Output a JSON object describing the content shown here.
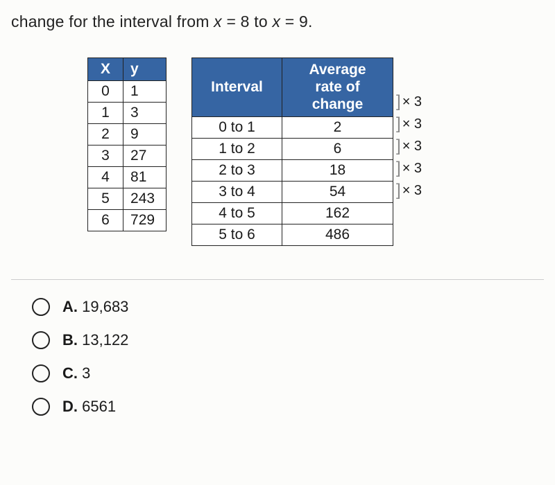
{
  "question": {
    "prefix": "change for the interval from ",
    "var1": "x",
    "eq1": " = 8 to ",
    "var2": "x",
    "eq2": " = 9."
  },
  "xy_table": {
    "headers": {
      "x": "X",
      "y": "y"
    },
    "rows": [
      {
        "x": "0",
        "y": "1"
      },
      {
        "x": "1",
        "y": "3"
      },
      {
        "x": "2",
        "y": "9"
      },
      {
        "x": "3",
        "y": "27"
      },
      {
        "x": "4",
        "y": "81"
      },
      {
        "x": "5",
        "y": "243"
      },
      {
        "x": "6",
        "y": "729"
      }
    ]
  },
  "rate_table": {
    "headers": {
      "interval": "Interval",
      "rate": "Average rate of change"
    },
    "rows": [
      {
        "interval": "0 to 1",
        "rate": "2"
      },
      {
        "interval": "1 to 2",
        "rate": "6"
      },
      {
        "interval": "2 to 3",
        "rate": "18"
      },
      {
        "interval": "3 to 4",
        "rate": "54"
      },
      {
        "interval": "4 to 5",
        "rate": "162"
      },
      {
        "interval": "5 to 6",
        "rate": "486"
      }
    ]
  },
  "multipliers": [
    {
      "label": "× 3"
    },
    {
      "label": "× 3"
    },
    {
      "label": "× 3"
    },
    {
      "label": "× 3"
    },
    {
      "label": "× 3"
    }
  ],
  "options": [
    {
      "letter": "A.",
      "text": "19,683"
    },
    {
      "letter": "B.",
      "text": "13,122"
    },
    {
      "letter": "C.",
      "text": "3"
    },
    {
      "letter": "D.",
      "text": "6561"
    }
  ],
  "colors": {
    "header_bg": "#3665a3",
    "header_fg": "#ffffff",
    "border": "#222222",
    "page_bg": "#fcfcfa"
  }
}
